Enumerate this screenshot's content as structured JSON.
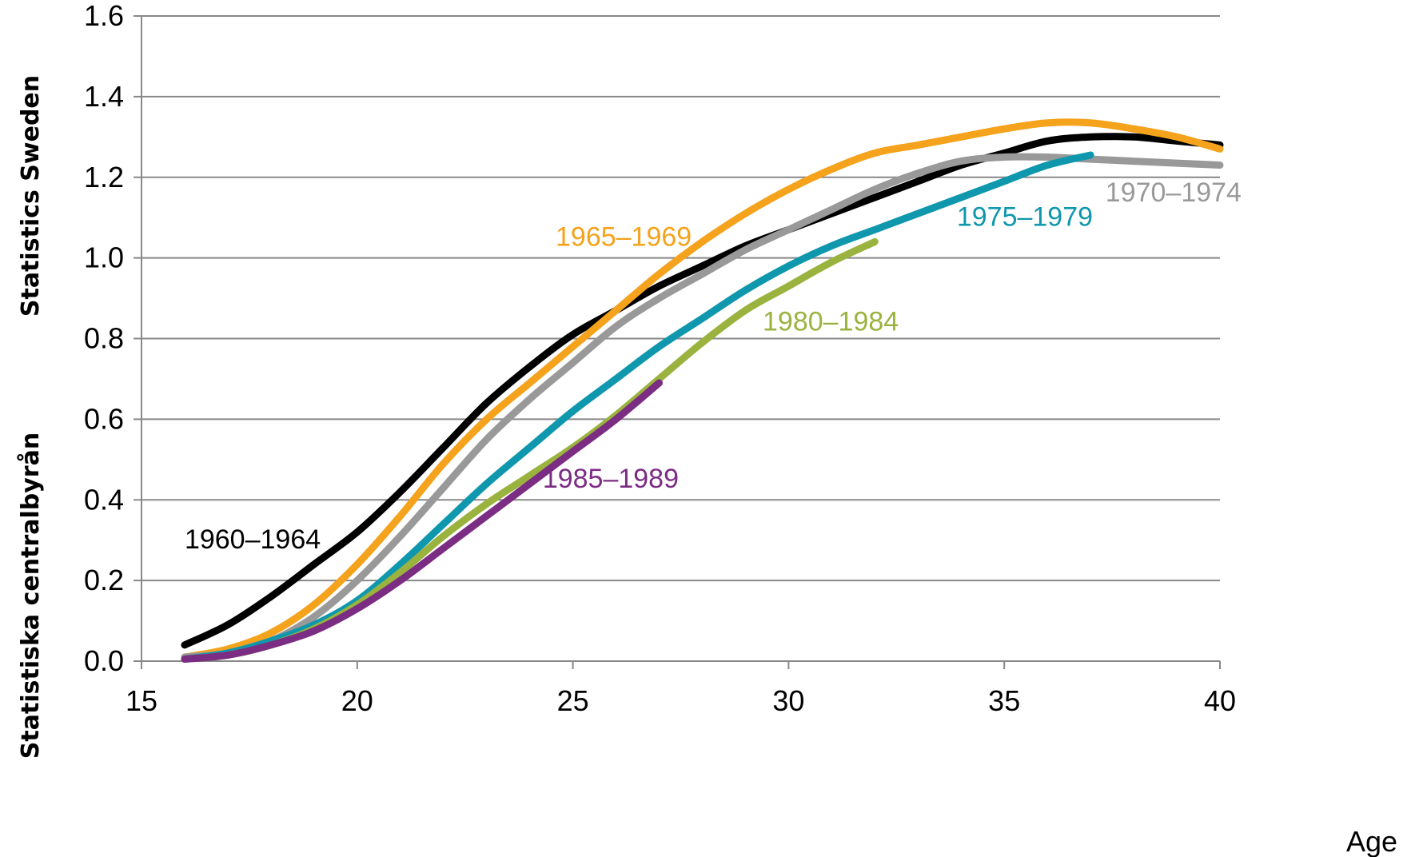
{
  "side_labels": {
    "upper": "Statistics Sweden",
    "lower": "Statistiska centralbyrån"
  },
  "chart_data": {
    "type": "line",
    "title": "",
    "xlabel": "Age",
    "ylabel": "",
    "xlim": [
      15,
      40
    ],
    "ylim": [
      0,
      1.6
    ],
    "x_ticks": [
      "15",
      "20",
      "25",
      "30",
      "35",
      "40"
    ],
    "y_ticks": [
      "0.0",
      "0.2",
      "0.4",
      "0.6",
      "0.8",
      "1.0",
      "1.2",
      "1.4",
      "1.6"
    ],
    "grid": "horizontal",
    "legend": "inline labels",
    "series": [
      {
        "name": "1960–1964",
        "color": "#000000",
        "x": [
          16,
          17,
          18,
          19,
          20,
          21,
          22,
          23,
          24,
          25,
          26,
          27,
          28,
          29,
          30,
          31,
          32,
          33,
          34,
          35,
          36,
          37,
          38,
          39,
          40
        ],
        "y": [
          0.04,
          0.09,
          0.16,
          0.24,
          0.32,
          0.42,
          0.53,
          0.64,
          0.73,
          0.81,
          0.87,
          0.93,
          0.98,
          1.03,
          1.07,
          1.11,
          1.15,
          1.19,
          1.23,
          1.26,
          1.29,
          1.3,
          1.3,
          1.29,
          1.28
        ]
      },
      {
        "name": "1965–1969",
        "color": "#f5a21c",
        "x": [
          16,
          17,
          18,
          19,
          20,
          21,
          22,
          23,
          24,
          25,
          26,
          27,
          28,
          29,
          30,
          31,
          32,
          33,
          34,
          35,
          36,
          37,
          38,
          39,
          40
        ],
        "y": [
          0.01,
          0.03,
          0.07,
          0.14,
          0.24,
          0.36,
          0.49,
          0.6,
          0.69,
          0.78,
          0.87,
          0.96,
          1.04,
          1.11,
          1.17,
          1.22,
          1.26,
          1.28,
          1.3,
          1.32,
          1.335,
          1.335,
          1.32,
          1.3,
          1.27
        ]
      },
      {
        "name": "1970–1974",
        "color": "#999999",
        "x": [
          16,
          17,
          18,
          19,
          20,
          21,
          22,
          23,
          24,
          25,
          26,
          27,
          28,
          29,
          30,
          31,
          32,
          33,
          34,
          35,
          36,
          37,
          38,
          39,
          40
        ],
        "y": [
          0.01,
          0.02,
          0.05,
          0.11,
          0.2,
          0.31,
          0.43,
          0.55,
          0.65,
          0.74,
          0.83,
          0.9,
          0.96,
          1.02,
          1.07,
          1.12,
          1.17,
          1.21,
          1.24,
          1.25,
          1.25,
          1.245,
          1.24,
          1.235,
          1.23
        ]
      },
      {
        "name": "1975–1979",
        "color": "#0f97ad",
        "x": [
          16,
          17,
          18,
          19,
          20,
          21,
          22,
          23,
          24,
          25,
          26,
          27,
          28,
          29,
          30,
          31,
          32,
          33,
          34,
          35,
          36,
          37
        ],
        "y": [
          0.005,
          0.02,
          0.05,
          0.09,
          0.15,
          0.24,
          0.34,
          0.44,
          0.53,
          0.62,
          0.7,
          0.78,
          0.85,
          0.92,
          0.98,
          1.03,
          1.07,
          1.11,
          1.15,
          1.19,
          1.23,
          1.255
        ]
      },
      {
        "name": "1980–1984",
        "color": "#9ab33f",
        "x": [
          16,
          17,
          18,
          19,
          20,
          21,
          22,
          23,
          24,
          25,
          26,
          27,
          28,
          29,
          30,
          31,
          32
        ],
        "y": [
          0.005,
          0.015,
          0.04,
          0.08,
          0.14,
          0.22,
          0.31,
          0.39,
          0.46,
          0.53,
          0.61,
          0.7,
          0.79,
          0.87,
          0.93,
          0.99,
          1.04
        ]
      },
      {
        "name": "1985–1989",
        "color": "#7b2c83",
        "x": [
          16,
          17,
          18,
          19,
          20,
          21,
          22,
          23,
          24,
          25,
          26,
          27
        ],
        "y": [
          0.005,
          0.015,
          0.04,
          0.075,
          0.13,
          0.2,
          0.28,
          0.36,
          0.44,
          0.52,
          0.6,
          0.69
        ]
      }
    ]
  }
}
